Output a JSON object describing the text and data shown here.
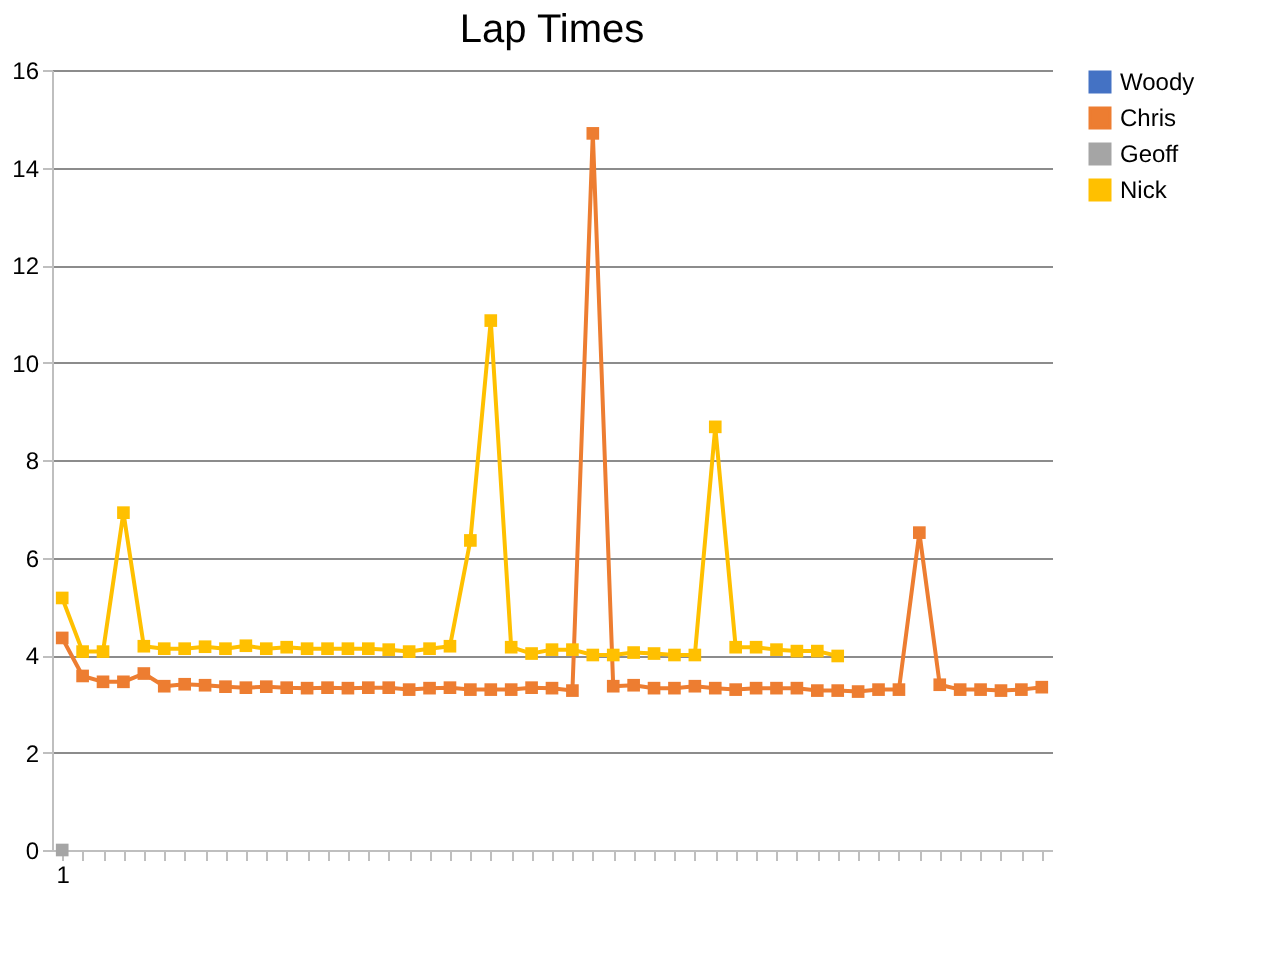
{
  "chart_data": {
    "type": "line",
    "title": "Lap Times",
    "categories": [
      "1",
      null,
      null,
      null,
      null,
      null,
      null,
      null,
      null,
      null,
      null,
      null,
      null,
      null,
      null,
      null,
      null,
      null,
      null,
      null,
      null,
      null,
      null,
      null,
      null,
      null,
      null,
      null,
      null,
      null,
      null,
      null,
      null,
      null,
      null,
      null,
      null,
      null,
      null,
      null,
      null,
      null,
      null,
      null,
      null,
      null,
      null,
      null,
      null
    ],
    "series": [
      {
        "name": "Woody",
        "color": "#4472c4",
        "values": [
          null,
          null,
          null,
          null,
          null,
          null,
          null,
          null,
          null,
          null,
          null,
          null,
          null,
          null,
          null,
          null,
          null,
          null,
          null,
          null,
          null,
          null,
          null,
          null,
          null,
          null,
          null,
          null,
          null,
          null,
          null,
          null,
          null,
          null,
          null,
          null,
          null,
          null,
          null,
          null,
          null,
          null,
          null,
          null,
          null,
          null,
          null,
          null,
          null
        ]
      },
      {
        "name": "Chris",
        "color": "#ed7d31",
        "values": [
          4.35,
          3.57,
          3.45,
          3.45,
          3.62,
          3.36,
          3.4,
          3.38,
          3.35,
          3.33,
          3.35,
          3.33,
          3.32,
          3.33,
          3.32,
          3.33,
          3.33,
          3.29,
          3.32,
          3.33,
          3.29,
          3.29,
          3.29,
          3.33,
          3.32,
          3.27,
          14.7,
          3.36,
          3.38,
          3.32,
          3.32,
          3.36,
          3.32,
          3.29,
          3.32,
          3.32,
          3.32,
          3.27,
          3.27,
          3.25,
          3.29,
          3.29,
          6.51,
          3.39,
          3.29,
          3.29,
          3.27,
          3.29,
          3.34
        ]
      },
      {
        "name": "Geoff",
        "color": "#a5a5a5",
        "values": [
          0,
          null,
          null,
          null,
          null,
          null,
          null,
          null,
          null,
          null,
          null,
          null,
          null,
          null,
          null,
          null,
          null,
          null,
          null,
          null,
          null,
          null,
          null,
          null,
          null,
          null,
          null,
          null,
          null,
          null,
          null,
          null,
          null,
          null,
          null,
          null,
          null,
          null,
          null,
          null,
          null,
          null,
          null,
          null,
          null,
          null,
          null,
          null,
          null
        ]
      },
      {
        "name": "Nick",
        "color": "#ffc000",
        "values": [
          5.17,
          4.07,
          4.07,
          6.92,
          4.18,
          4.13,
          4.13,
          4.17,
          4.13,
          4.19,
          4.13,
          4.16,
          4.13,
          4.13,
          4.13,
          4.13,
          4.11,
          4.07,
          4.13,
          4.18,
          6.35,
          10.86,
          4.16,
          4.03,
          4.11,
          4.11,
          4.0,
          4.0,
          4.05,
          4.03,
          4.0,
          4.0,
          8.68,
          4.16,
          4.16,
          4.11,
          4.08,
          4.08,
          3.98,
          null,
          null,
          null,
          null,
          null,
          null,
          null,
          null,
          null,
          null
        ]
      }
    ],
    "ylim": [
      0,
      16
    ],
    "yticks": [
      0,
      2,
      4,
      6,
      8,
      10,
      12,
      14,
      16
    ],
    "grid": "y",
    "legend": "right",
    "marker": "square",
    "line_style": "solid"
  }
}
